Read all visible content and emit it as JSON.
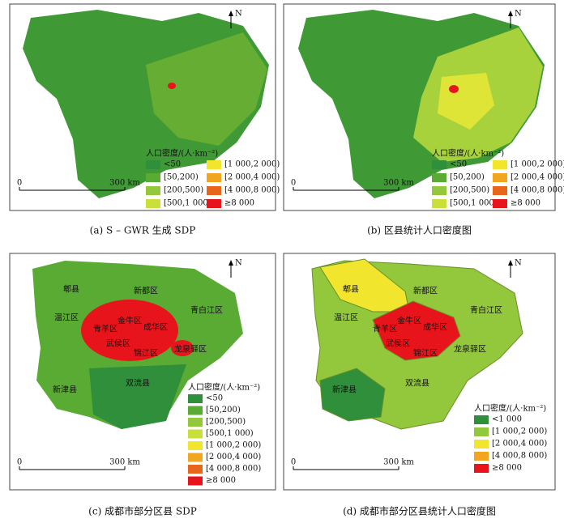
{
  "panels": [
    {
      "caption": "(a) S – GWR 生成 SDP",
      "north": "N",
      "scale": {
        "zero": "0",
        "distance": "300 km"
      },
      "legend": {
        "title": "人口密度/(人·km⁻²)",
        "items": [
          {
            "label": "<50",
            "color": "#2f8f3a"
          },
          {
            "label": "[50,200)",
            "color": "#5aab34"
          },
          {
            "label": "[200,500)",
            "color": "#93c73c"
          },
          {
            "label": "[500,1 000)",
            "color": "#c9df3a"
          },
          {
            "label": "[1 000,2 000)",
            "color": "#f1e52e"
          },
          {
            "label": "[2 000,4 000)",
            "color": "#f2a51e"
          },
          {
            "label": "[4 000,8 000)",
            "color": "#e8651c"
          },
          {
            "label": "≥8 000",
            "color": "#e8141c"
          }
        ]
      }
    },
    {
      "caption": "(b) 区县统计人口密度图",
      "north": "N",
      "scale": {
        "zero": "0",
        "distance": "300 km"
      },
      "legend": {
        "title": "人口密度/(人·km⁻²)",
        "items": [
          {
            "label": "<50",
            "color": "#2f8f3a"
          },
          {
            "label": "[50,200)",
            "color": "#5aab34"
          },
          {
            "label": "[200,500)",
            "color": "#93c73c"
          },
          {
            "label": "[500,1 000)",
            "color": "#c9df3a"
          },
          {
            "label": "[1 000,2 000)",
            "color": "#f1e52e"
          },
          {
            "label": "[2 000,4 000)",
            "color": "#f2a51e"
          },
          {
            "label": "[4 000,8 000)",
            "color": "#e8651c"
          },
          {
            "label": "≥8 000",
            "color": "#e8141c"
          }
        ]
      }
    },
    {
      "caption": "(c) 成都市部分区县 SDP",
      "north": "N",
      "scale": {
        "zero": "0",
        "distance": "300 km"
      },
      "legend": {
        "title": "人口密度/(人·km⁻²)",
        "items": [
          {
            "label": "<50",
            "color": "#2f8f3a"
          },
          {
            "label": "[50,200)",
            "color": "#5aab34"
          },
          {
            "label": "[200,500)",
            "color": "#93c73c"
          },
          {
            "label": "[500,1 000)",
            "color": "#c9df3a"
          },
          {
            "label": "[1 000,2 000)",
            "color": "#f1e52e"
          },
          {
            "label": "[2 000,4 000)",
            "color": "#f2a51e"
          },
          {
            "label": "[4 000,8 000)",
            "color": "#e8651c"
          },
          {
            "label": "≥8 000",
            "color": "#e8141c"
          }
        ]
      },
      "districts": [
        "郫县",
        "新都区",
        "温江区",
        "青白江区",
        "青羊区",
        "金牛区",
        "成华区",
        "武侯区",
        "锦江区",
        "龙泉驿区",
        "新津县",
        "双流县"
      ]
    },
    {
      "caption": "(d) 成都市部分区县统计人口密度图",
      "north": "N",
      "scale": {
        "zero": "0",
        "distance": "300 km"
      },
      "legend": {
        "title": "人口密度/(人·km⁻²)",
        "items": [
          {
            "label": "<1 000",
            "color": "#2f8f3a"
          },
          {
            "label": "[1 000,2 000)",
            "color": "#93c73c"
          },
          {
            "label": "[2 000,4 000)",
            "color": "#f1e52e"
          },
          {
            "label": "[4 000,8 000)",
            "color": "#f2a51e"
          },
          {
            "label": "≥8 000",
            "color": "#e8141c"
          }
        ]
      },
      "districts": [
        "郫县",
        "新都区",
        "温江区",
        "青白江区",
        "青羊区",
        "金牛区",
        "成华区",
        "武侯区",
        "锦江区",
        "龙泉驿区",
        "新津县",
        "双流县"
      ]
    }
  ]
}
